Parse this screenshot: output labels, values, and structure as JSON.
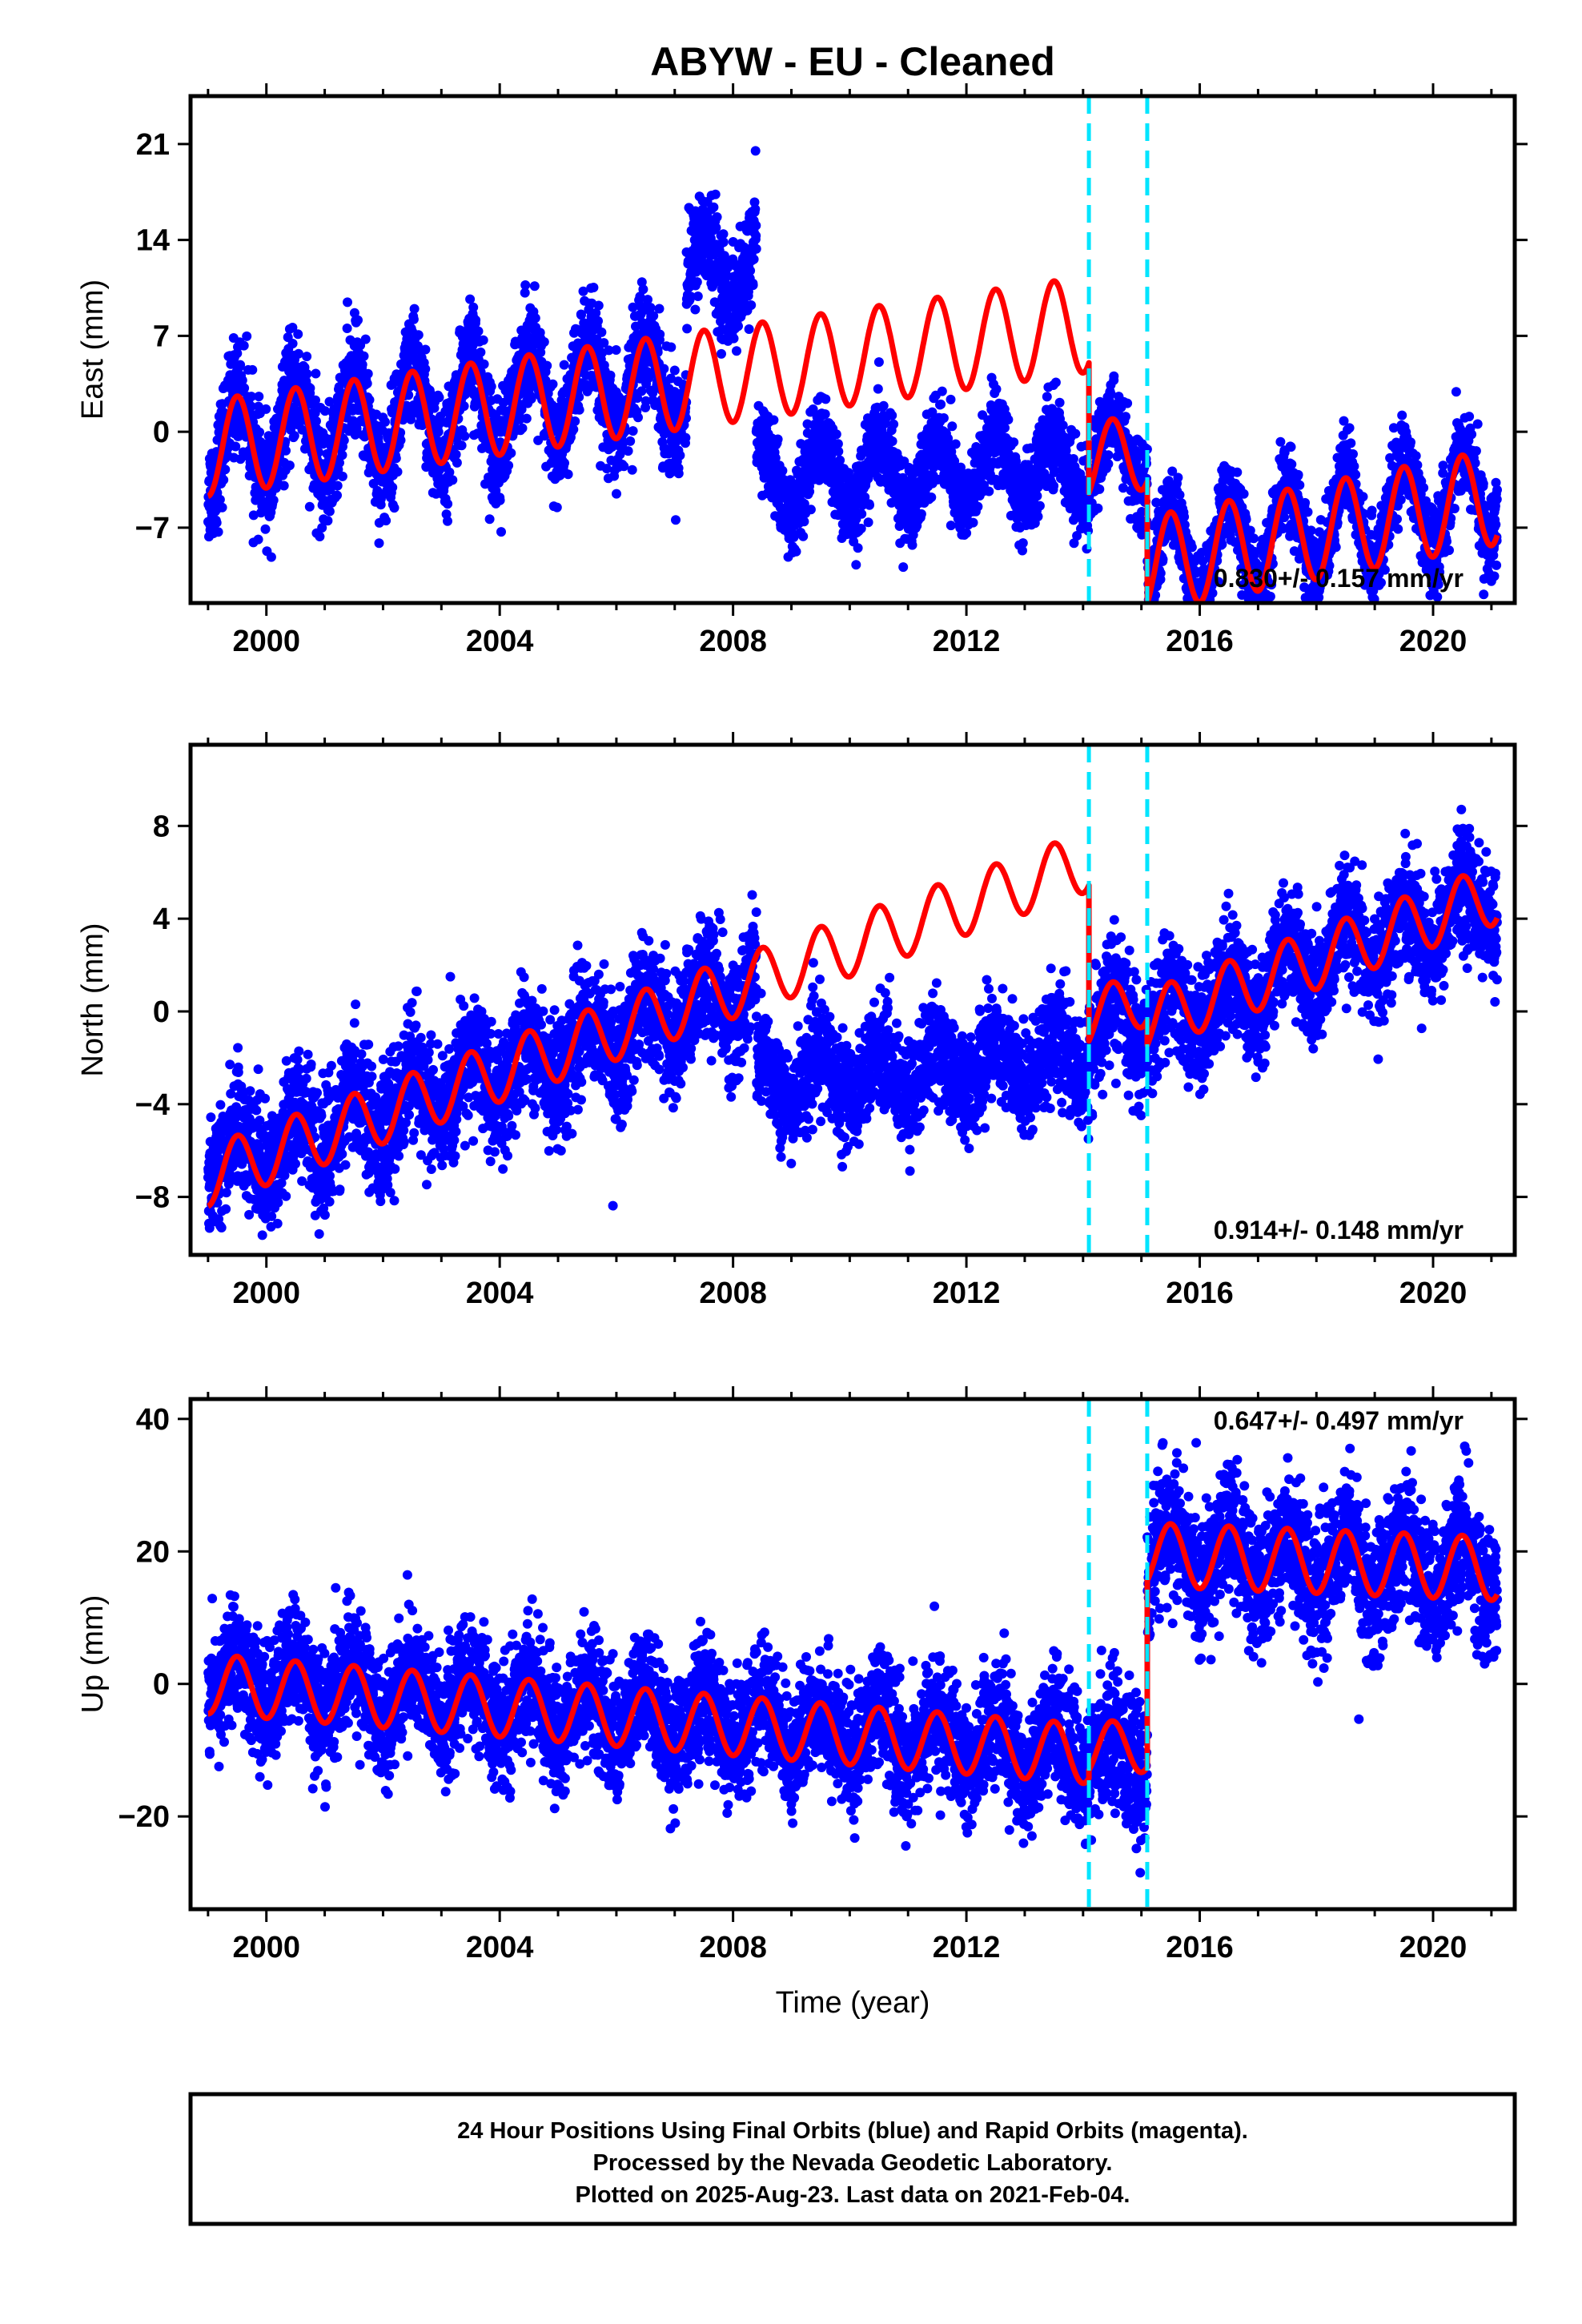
{
  "title": "ABYW  - EU - Cleaned",
  "xlabel": "Time (year)",
  "caption": [
    "24 Hour Positions Using Final Orbits (blue) and Rapid Orbits (magenta).",
    "Processed by the Nevada Geodetic Laboratory.",
    "Plotted on 2025-Aug-23. Last data on 2021-Feb-04."
  ],
  "colors": {
    "observations": "#0000ff",
    "model": "#ff0000",
    "steps": "#00e5ff",
    "frame": "#000000"
  },
  "chart_data": [
    {
      "type": "scatter",
      "ylabel": "East (mm)",
      "xlim": [
        1998.7,
        2021.4
      ],
      "ylim": [
        -12.5,
        24.5
      ],
      "xticks": [
        2000,
        2004,
        2008,
        2012,
        2016,
        2020
      ],
      "yticks": [
        -7,
        0,
        7,
        14,
        21
      ],
      "yticklabels": [
        "−7",
        "0",
        "7",
        "14",
        "21"
      ],
      "steps": [
        2014.1,
        2015.1
      ],
      "rate_label": "0.830+/- 0.157 mm/yr",
      "rate_position": "bottom-right",
      "segments": [
        {
          "start": 1999.0,
          "end": 2007.2,
          "offset": -1.0,
          "trend": 0.6,
          "amp": 3.5,
          "noise": 2.0
        },
        {
          "start": 2007.2,
          "end": 2008.4,
          "offset": 11.5,
          "trend": 0.6,
          "amp": 2.5,
          "noise": 1.8
        },
        {
          "start": 2008.4,
          "end": 2014.1,
          "offset": -3.4,
          "trend": 0.15,
          "amp": 2.5,
          "noise": 1.5
        },
        {
          "start": 2014.1,
          "end": 2015.1,
          "offset": -2.0,
          "trend": 0.8,
          "amp": 2.8,
          "noise": 1.5
        },
        {
          "start": 2015.1,
          "end": 2021.1,
          "offset": -9.6,
          "trend": 0.9,
          "amp": 3.5,
          "noise": 1.5
        }
      ],
      "model": [
        {
          "start": 1999.0,
          "end": 2014.1,
          "offset": -1.2,
          "trend": 0.6,
          "amp": 3.5
        },
        {
          "start": 2014.1,
          "end": 2015.1,
          "offset": -2.2,
          "trend": 0.83,
          "amp": 2.8
        },
        {
          "start": 2015.1,
          "end": 2021.1,
          "offset": -9.7,
          "trend": 0.83,
          "amp": 3.5
        }
      ]
    },
    {
      "type": "scatter",
      "ylabel": "North (mm)",
      "xlim": [
        1998.7,
        2021.4
      ],
      "ylim": [
        -10.5,
        11.5
      ],
      "xticks": [
        2000,
        2004,
        2008,
        2012,
        2016,
        2020
      ],
      "yticks": [
        -8,
        -4,
        0,
        4,
        8
      ],
      "yticklabels": [
        "−8",
        "−4",
        "0",
        "4",
        "8"
      ],
      "steps": [
        2014.1,
        2015.1
      ],
      "rate_label": "0.914+/- 0.148 mm/yr",
      "rate_position": "bottom-right",
      "segments": [
        {
          "start": 1999.0,
          "end": 2004.3,
          "offset": -6.5,
          "trend": 0.75,
          "amp": 1.2,
          "noise": 1.3
        },
        {
          "start": 2004.3,
          "end": 2008.4,
          "offset": -2.5,
          "trend": 0.9,
          "amp": 1.2,
          "noise": 1.3
        },
        {
          "start": 2008.4,
          "end": 2014.1,
          "offset": -3.0,
          "trend": 0.18,
          "amp": 1.0,
          "noise": 1.1
        },
        {
          "start": 2014.1,
          "end": 2015.1,
          "offset": -1.0,
          "trend": 0.9,
          "amp": 1.2,
          "noise": 1.2
        },
        {
          "start": 2015.1,
          "end": 2021.1,
          "offset": -0.6,
          "trend": 0.92,
          "amp": 1.2,
          "noise": 1.2
        }
      ],
      "model": [
        {
          "start": 1999.0,
          "end": 2014.1,
          "offset": -7.1,
          "trend": 0.9,
          "amp": 1.3
        },
        {
          "start": 2014.1,
          "end": 2015.1,
          "offset": -0.3,
          "trend": 0.9,
          "amp": 1.2
        },
        {
          "start": 2015.1,
          "end": 2021.1,
          "offset": -0.4,
          "trend": 0.914,
          "amp": 1.3
        }
      ]
    },
    {
      "type": "scatter",
      "ylabel": "Up (mm)",
      "xlim": [
        1998.7,
        2021.4
      ],
      "ylim": [
        -34,
        43
      ],
      "xticks": [
        2000,
        2004,
        2008,
        2012,
        2016,
        2020
      ],
      "yticks": [
        -20,
        0,
        20,
        40
      ],
      "yticklabels": [
        "−20",
        "0",
        "20",
        "40"
      ],
      "steps": [
        2014.1,
        2015.1
      ],
      "rate_label": "0.647+/- 0.497 mm/yr",
      "rate_position": "top-right",
      "segments": [
        {
          "start": 1999.0,
          "end": 2014.1,
          "offset": 0.5,
          "trend": -0.7,
          "amp": 4.0,
          "noise": 4.5
        },
        {
          "start": 2014.1,
          "end": 2015.1,
          "offset": -11.0,
          "trend": 0.5,
          "amp": 4.0,
          "noise": 5.0
        },
        {
          "start": 2015.1,
          "end": 2021.1,
          "offset": 19.5,
          "trend": -0.4,
          "amp": 4.5,
          "noise": 5.0
        }
      ],
      "model": [
        {
          "start": 1999.0,
          "end": 2014.1,
          "offset": 0.0,
          "trend": -0.7,
          "amp": 4.5
        },
        {
          "start": 2014.1,
          "end": 2015.1,
          "offset": -9.8,
          "trend": 0.5,
          "amp": 4.0
        },
        {
          "start": 2015.1,
          "end": 2021.1,
          "offset": 19.5,
          "trend": -0.35,
          "amp": 4.8
        }
      ]
    }
  ]
}
